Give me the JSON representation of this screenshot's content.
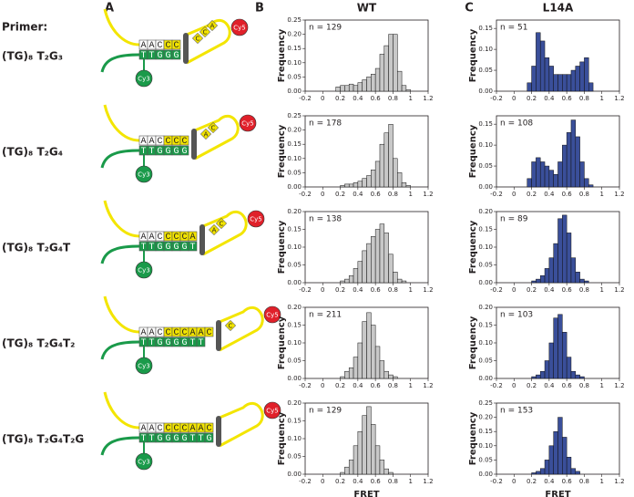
{
  "labels": {
    "panel_a": "A",
    "panel_b": "B",
    "panel_c": "C",
    "primer_heading": "Primer:"
  },
  "primers": [
    "(TG)₈ T₂G₃",
    "(TG)₈ T₂G₄",
    "(TG)₈ T₂G₄T",
    "(TG)₈ T₂G₄T₂",
    "(TG)₈ T₂G₄T₂G"
  ],
  "diagrams": [
    {
      "top": "AACCC",
      "bottom": "TTGGG",
      "loop": [
        "C",
        "C",
        "A"
      ],
      "cy3": "Cy3",
      "cy5": "Cy5"
    },
    {
      "top": "AACCCC",
      "bottom": "TTGGGG",
      "loop": [
        "A",
        "C"
      ],
      "cy3": "Cy3",
      "cy5": "Cy5"
    },
    {
      "top": "AACCCCA",
      "bottom": "TTGGGGT",
      "loop": [
        "A",
        "C"
      ],
      "cy3": "Cy3",
      "cy5": "Cy5"
    },
    {
      "top": "AACCCCAAC",
      "bottom": "TTGGGGTT",
      "loop": [
        "C"
      ],
      "cy3": "Cy3",
      "cy5": "Cy5"
    },
    {
      "top": "AACCCCAAC",
      "bottom": "TTGGGGTTG",
      "loop": [],
      "cy3": "Cy3",
      "cy5": "Cy5"
    }
  ],
  "chart_data": [
    {
      "type": "histogram",
      "title": "WT",
      "annotation": "n = 129",
      "ylabel": "Frequency",
      "color": "#c8c8c8",
      "bins": [
        0,
        0.05,
        0.1,
        0.15,
        0.2,
        0.25,
        0.3,
        0.35,
        0.4,
        0.45,
        0.5,
        0.55,
        0.6,
        0.65,
        0.7,
        0.75,
        0.8,
        0.85,
        0.9,
        0.95,
        1.0
      ],
      "values": [
        0,
        0,
        0,
        0.015,
        0.02,
        0.02,
        0.025,
        0.02,
        0.03,
        0.04,
        0.05,
        0.06,
        0.08,
        0.13,
        0.16,
        0.2,
        0.2,
        0.07,
        0.02,
        0.005
      ],
      "xlim": [
        -0.2,
        1.2
      ],
      "xticks": [
        -0.2,
        0,
        0.2,
        0.4,
        0.6,
        0.8,
        1,
        1.2
      ],
      "ylim": [
        0,
        0.25
      ],
      "yticks": [
        {
          "value": 0,
          "label": "0.00"
        },
        {
          "value": 0.05,
          "label": "0.05"
        },
        {
          "value": 0.1,
          "label": "0.10"
        },
        {
          "value": 0.15,
          "label": "0.15"
        },
        {
          "value": 0.2,
          "label": "0.20"
        },
        {
          "value": 0.25,
          "label": "0.25"
        }
      ]
    },
    {
      "type": "histogram",
      "title": "L14A",
      "annotation": "n = 51",
      "ylabel": "Frequency",
      "color": "#3a4f9a",
      "bins": [
        0,
        0.05,
        0.1,
        0.15,
        0.2,
        0.25,
        0.3,
        0.35,
        0.4,
        0.45,
        0.5,
        0.55,
        0.6,
        0.65,
        0.7,
        0.75,
        0.8,
        0.85,
        0.9,
        0.95,
        1.0
      ],
      "values": [
        0,
        0,
        0,
        0.02,
        0.06,
        0.14,
        0.12,
        0.08,
        0.06,
        0.04,
        0.04,
        0.04,
        0.04,
        0.05,
        0.06,
        0.07,
        0.08,
        0.02,
        0,
        0
      ],
      "xlim": [
        -0.2,
        1.2
      ],
      "xticks": [
        -0.2,
        0,
        0.2,
        0.4,
        0.6,
        0.8,
        1,
        1.2
      ],
      "ylim": [
        0,
        0.17
      ],
      "yticks": [
        {
          "value": 0,
          "label": "0.00"
        },
        {
          "value": 0.05,
          "label": "0.05"
        },
        {
          "value": 0.1,
          "label": "0.10"
        },
        {
          "value": 0.15,
          "label": "0.15"
        }
      ]
    },
    {
      "type": "histogram",
      "annotation": "n = 178",
      "ylabel": "Frequency",
      "color": "#c8c8c8",
      "bins": [
        0,
        0.05,
        0.1,
        0.15,
        0.2,
        0.25,
        0.3,
        0.35,
        0.4,
        0.45,
        0.5,
        0.55,
        0.6,
        0.65,
        0.7,
        0.75,
        0.8,
        0.85,
        0.9,
        0.95,
        1.0
      ],
      "values": [
        0,
        0,
        0,
        0,
        0.005,
        0.01,
        0.01,
        0.015,
        0.02,
        0.03,
        0.04,
        0.06,
        0.09,
        0.15,
        0.19,
        0.22,
        0.1,
        0.05,
        0.015,
        0.005
      ],
      "xlim": [
        -0.2,
        1.2
      ],
      "xticks": [
        -0.2,
        0,
        0.2,
        0.4,
        0.6,
        0.8,
        1,
        1.2
      ],
      "ylim": [
        0,
        0.25
      ],
      "yticks": [
        {
          "value": 0,
          "label": "0.00"
        },
        {
          "value": 0.05,
          "label": "0.05"
        },
        {
          "value": 0.1,
          "label": "0.10"
        },
        {
          "value": 0.15,
          "label": "0.15"
        },
        {
          "value": 0.2,
          "label": "0.20"
        },
        {
          "value": 0.25,
          "label": "0.25"
        }
      ]
    },
    {
      "type": "histogram",
      "annotation": "n = 108",
      "ylabel": "Frequency",
      "color": "#3a4f9a",
      "bins": [
        0,
        0.05,
        0.1,
        0.15,
        0.2,
        0.25,
        0.3,
        0.35,
        0.4,
        0.45,
        0.5,
        0.55,
        0.6,
        0.65,
        0.7,
        0.75,
        0.8,
        0.85,
        0.9,
        0.95,
        1.0
      ],
      "values": [
        0,
        0,
        0,
        0.02,
        0.06,
        0.07,
        0.06,
        0.05,
        0.04,
        0.03,
        0.06,
        0.1,
        0.13,
        0.16,
        0.12,
        0.06,
        0.02,
        0.005,
        0,
        0
      ],
      "xlim": [
        -0.2,
        1.2
      ],
      "xticks": [
        -0.2,
        0,
        0.2,
        0.4,
        0.6,
        0.8,
        1,
        1.2
      ],
      "ylim": [
        0,
        0.17
      ],
      "yticks": [
        {
          "value": 0,
          "label": "0.00"
        },
        {
          "value": 0.05,
          "label": "0.05"
        },
        {
          "value": 0.1,
          "label": "0.10"
        },
        {
          "value": 0.15,
          "label": "0.15"
        }
      ]
    },
    {
      "type": "histogram",
      "annotation": "n = 138",
      "ylabel": "Frequency",
      "color": "#c8c8c8",
      "bins": [
        0,
        0.05,
        0.1,
        0.15,
        0.2,
        0.25,
        0.3,
        0.35,
        0.4,
        0.45,
        0.5,
        0.55,
        0.6,
        0.65,
        0.7,
        0.75,
        0.8,
        0.85,
        0.9,
        0.95,
        1.0
      ],
      "values": [
        0,
        0,
        0,
        0,
        0.005,
        0.01,
        0.02,
        0.04,
        0.06,
        0.09,
        0.11,
        0.13,
        0.15,
        0.165,
        0.14,
        0.08,
        0.03,
        0.01,
        0.005,
        0
      ],
      "xlim": [
        -0.2,
        1.2
      ],
      "xticks": [
        -0.2,
        0,
        0.2,
        0.4,
        0.6,
        0.8,
        1,
        1.2
      ],
      "ylim": [
        0,
        0.2
      ],
      "yticks": [
        {
          "value": 0,
          "label": "0.00"
        },
        {
          "value": 0.05,
          "label": "0.05"
        },
        {
          "value": 0.1,
          "label": "0.10"
        },
        {
          "value": 0.15,
          "label": "0.15"
        },
        {
          "value": 0.2,
          "label": "0.20"
        }
      ]
    },
    {
      "type": "histogram",
      "annotation": "n = 89",
      "ylabel": "Frequency",
      "color": "#3a4f9a",
      "bins": [
        0,
        0.05,
        0.1,
        0.15,
        0.2,
        0.25,
        0.3,
        0.35,
        0.4,
        0.45,
        0.5,
        0.55,
        0.6,
        0.65,
        0.7,
        0.75,
        0.8,
        0.85,
        0.9,
        0.95,
        1.0
      ],
      "values": [
        0,
        0,
        0,
        0,
        0.005,
        0.01,
        0.02,
        0.04,
        0.07,
        0.11,
        0.18,
        0.19,
        0.14,
        0.07,
        0.03,
        0.01,
        0.005,
        0,
        0,
        0
      ],
      "xlim": [
        -0.2,
        1.2
      ],
      "xticks": [
        -0.2,
        0,
        0.2,
        0.4,
        0.6,
        0.8,
        1,
        1.2
      ],
      "ylim": [
        0,
        0.2
      ],
      "yticks": [
        {
          "value": 0,
          "label": "0.00"
        },
        {
          "value": 0.05,
          "label": "0.05"
        },
        {
          "value": 0.1,
          "label": "0.10"
        },
        {
          "value": 0.15,
          "label": "0.15"
        },
        {
          "value": 0.2,
          "label": "0.20"
        }
      ]
    },
    {
      "type": "histogram",
      "annotation": "n = 211",
      "ylabel": "Frequency",
      "color": "#c8c8c8",
      "bins": [
        0,
        0.05,
        0.1,
        0.15,
        0.2,
        0.25,
        0.3,
        0.35,
        0.4,
        0.45,
        0.5,
        0.55,
        0.6,
        0.65,
        0.7,
        0.75,
        0.8,
        0.85,
        0.9,
        0.95,
        1.0
      ],
      "values": [
        0,
        0,
        0,
        0,
        0.005,
        0.02,
        0.03,
        0.06,
        0.1,
        0.16,
        0.185,
        0.15,
        0.09,
        0.05,
        0.02,
        0.01,
        0.005,
        0,
        0,
        0
      ],
      "xlim": [
        -0.2,
        1.2
      ],
      "xticks": [
        -0.2,
        0,
        0.2,
        0.4,
        0.6,
        0.8,
        1,
        1.2
      ],
      "ylim": [
        0,
        0.2
      ],
      "yticks": [
        {
          "value": 0,
          "label": "0.00"
        },
        {
          "value": 0.05,
          "label": "0.05"
        },
        {
          "value": 0.1,
          "label": "0.10"
        },
        {
          "value": 0.15,
          "label": "0.15"
        },
        {
          "value": 0.2,
          "label": "0.20"
        }
      ]
    },
    {
      "type": "histogram",
      "annotation": "n = 103",
      "ylabel": "Frequency",
      "color": "#3a4f9a",
      "bins": [
        0,
        0.05,
        0.1,
        0.15,
        0.2,
        0.25,
        0.3,
        0.35,
        0.4,
        0.45,
        0.5,
        0.55,
        0.6,
        0.65,
        0.7,
        0.75,
        0.8,
        0.85,
        0.9,
        0.95,
        1.0
      ],
      "values": [
        0,
        0,
        0,
        0,
        0.005,
        0.01,
        0.02,
        0.05,
        0.1,
        0.17,
        0.18,
        0.13,
        0.06,
        0.02,
        0.01,
        0.005,
        0,
        0,
        0,
        0
      ],
      "xlim": [
        -0.2,
        1.2
      ],
      "xticks": [
        -0.2,
        0,
        0.2,
        0.4,
        0.6,
        0.8,
        1,
        1.2
      ],
      "ylim": [
        0,
        0.2
      ],
      "yticks": [
        {
          "value": 0,
          "label": "0.00"
        },
        {
          "value": 0.05,
          "label": "0.05"
        },
        {
          "value": 0.1,
          "label": "0.10"
        },
        {
          "value": 0.15,
          "label": "0.15"
        },
        {
          "value": 0.2,
          "label": "0.20"
        }
      ]
    },
    {
      "type": "histogram",
      "annotation": "n = 129",
      "ylabel": "Frequency",
      "xlabel": "FRET",
      "color": "#c8c8c8",
      "bins": [
        0,
        0.05,
        0.1,
        0.15,
        0.2,
        0.25,
        0.3,
        0.35,
        0.4,
        0.45,
        0.5,
        0.55,
        0.6,
        0.65,
        0.7,
        0.75,
        0.8,
        0.85,
        0.9,
        0.95,
        1.0
      ],
      "values": [
        0,
        0,
        0,
        0,
        0.005,
        0.02,
        0.04,
        0.08,
        0.12,
        0.165,
        0.19,
        0.14,
        0.08,
        0.04,
        0.015,
        0.005,
        0,
        0,
        0,
        0
      ],
      "xlim": [
        -0.2,
        1.2
      ],
      "xticks": [
        -0.2,
        0,
        0.2,
        0.4,
        0.6,
        0.8,
        1,
        1.2
      ],
      "ylim": [
        0,
        0.2
      ],
      "yticks": [
        {
          "value": 0,
          "label": "0.00"
        },
        {
          "value": 0.05,
          "label": "0.05"
        },
        {
          "value": 0.1,
          "label": "0.10"
        },
        {
          "value": 0.15,
          "label": "0.15"
        },
        {
          "value": 0.2,
          "label": "0.20"
        }
      ]
    },
    {
      "type": "histogram",
      "annotation": "n = 153",
      "ylabel": "Frequency",
      "xlabel": "FRET",
      "color": "#3a4f9a",
      "bins": [
        0,
        0.05,
        0.1,
        0.15,
        0.2,
        0.25,
        0.3,
        0.35,
        0.4,
        0.45,
        0.5,
        0.55,
        0.6,
        0.65,
        0.7,
        0.75,
        0.8,
        0.85,
        0.9,
        0.95,
        1.0
      ],
      "values": [
        0,
        0,
        0,
        0,
        0.005,
        0.01,
        0.02,
        0.05,
        0.1,
        0.15,
        0.2,
        0.13,
        0.06,
        0.02,
        0.01,
        0,
        0,
        0,
        0,
        0
      ],
      "xlim": [
        -0.2,
        1.2
      ],
      "xticks": [
        -0.2,
        0,
        0.2,
        0.4,
        0.6,
        0.8,
        1,
        1.2
      ],
      "ylim": [
        0,
        0.25
      ],
      "yticks": [
        {
          "value": 0,
          "label": "0.00"
        },
        {
          "value": 0.05,
          "label": "0.05"
        },
        {
          "value": 0.1,
          "label": "0.10"
        },
        {
          "value": 0.15,
          "label": "0.15"
        },
        {
          "value": 0.2,
          "label": "0.20"
        },
        {
          "value": 0.25,
          "label": "0.25"
        }
      ]
    }
  ]
}
